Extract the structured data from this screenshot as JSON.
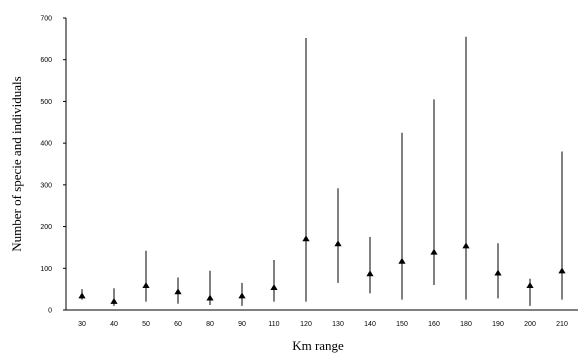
{
  "chart_data": {
    "type": "scatter",
    "xlabel": "Km range",
    "ylabel": "Number of specie and individuals",
    "categories": [
      "30",
      "40",
      "50",
      "60",
      "80",
      "90",
      "110",
      "120",
      "130",
      "140",
      "150",
      "160",
      "180",
      "190",
      "200",
      "210"
    ],
    "y_ticks": [
      "0",
      "100",
      "200",
      "300",
      "400",
      "500",
      "600",
      "700"
    ],
    "ylim": [
      0,
      700
    ],
    "grid": false,
    "legend": "none",
    "marker": "triangle",
    "color": "#000000",
    "series": [
      {
        "values": [
          35,
          22,
          60,
          45,
          30,
          35,
          55,
          172,
          160,
          88,
          118,
          140,
          155,
          90,
          60,
          95
        ],
        "error_low": [
          25,
          10,
          20,
          15,
          12,
          10,
          20,
          20,
          65,
          40,
          25,
          60,
          25,
          28,
          10,
          25
        ],
        "error_high": [
          50,
          52,
          142,
          78,
          94,
          65,
          120,
          652,
          292,
          175,
          425,
          505,
          655,
          160,
          75,
          380
        ]
      }
    ]
  }
}
